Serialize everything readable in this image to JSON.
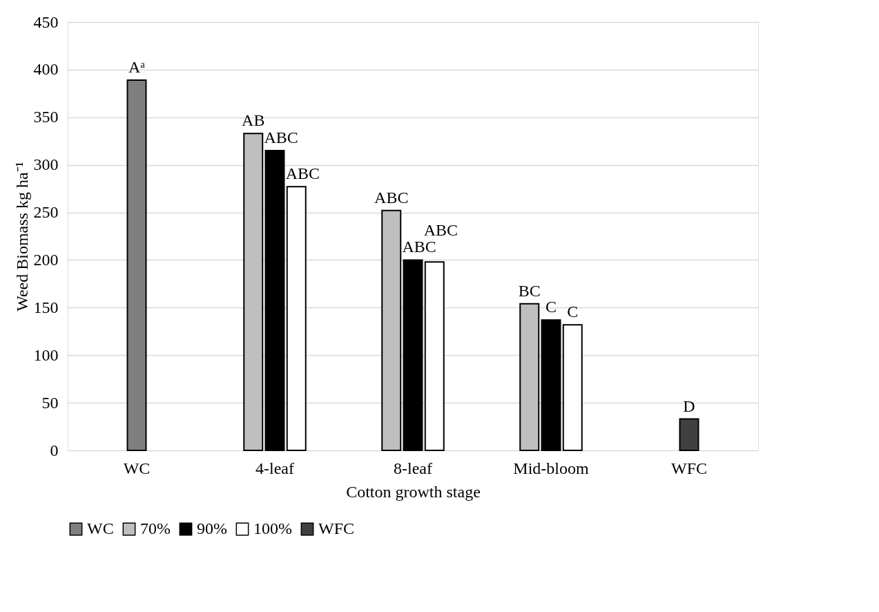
{
  "chart_data": {
    "type": "bar",
    "xlabel": "Cotton growth stage",
    "ylabel": "Weed Biomass kg ha⁻¹",
    "categories": [
      "WC",
      "4-leaf",
      "8-leaf",
      "Mid-bloom",
      "WFC"
    ],
    "series": [
      {
        "name": "WC",
        "color": "#7f7f7f",
        "values": [
          389,
          null,
          null,
          null,
          null
        ],
        "value_labels": [
          "Aᵃ",
          null,
          null,
          null,
          null
        ]
      },
      {
        "name": "70%",
        "color": "#bfbfbf",
        "values": [
          null,
          333,
          252,
          154,
          null
        ],
        "value_labels": [
          null,
          "AB",
          "ABC",
          "BC",
          null
        ]
      },
      {
        "name": "90%",
        "color": "#000000",
        "values": [
          null,
          315,
          200,
          137,
          null
        ],
        "value_labels": [
          null,
          "ABC",
          "ABC",
          "C",
          null
        ]
      },
      {
        "name": "100%",
        "color": "#ffffff",
        "values": [
          null,
          277,
          198,
          132,
          null
        ],
        "value_labels": [
          null,
          "ABC",
          "ABC",
          "C",
          null
        ]
      },
      {
        "name": "WFC",
        "color": "#404040",
        "values": [
          null,
          null,
          null,
          null,
          33
        ],
        "value_labels": [
          null,
          null,
          null,
          null,
          "D"
        ]
      }
    ],
    "ylim": [
      0,
      450
    ],
    "yticks": [
      0,
      50,
      100,
      150,
      200,
      250,
      300,
      350,
      400,
      450
    ],
    "grid": "y",
    "legend": "bottom"
  }
}
